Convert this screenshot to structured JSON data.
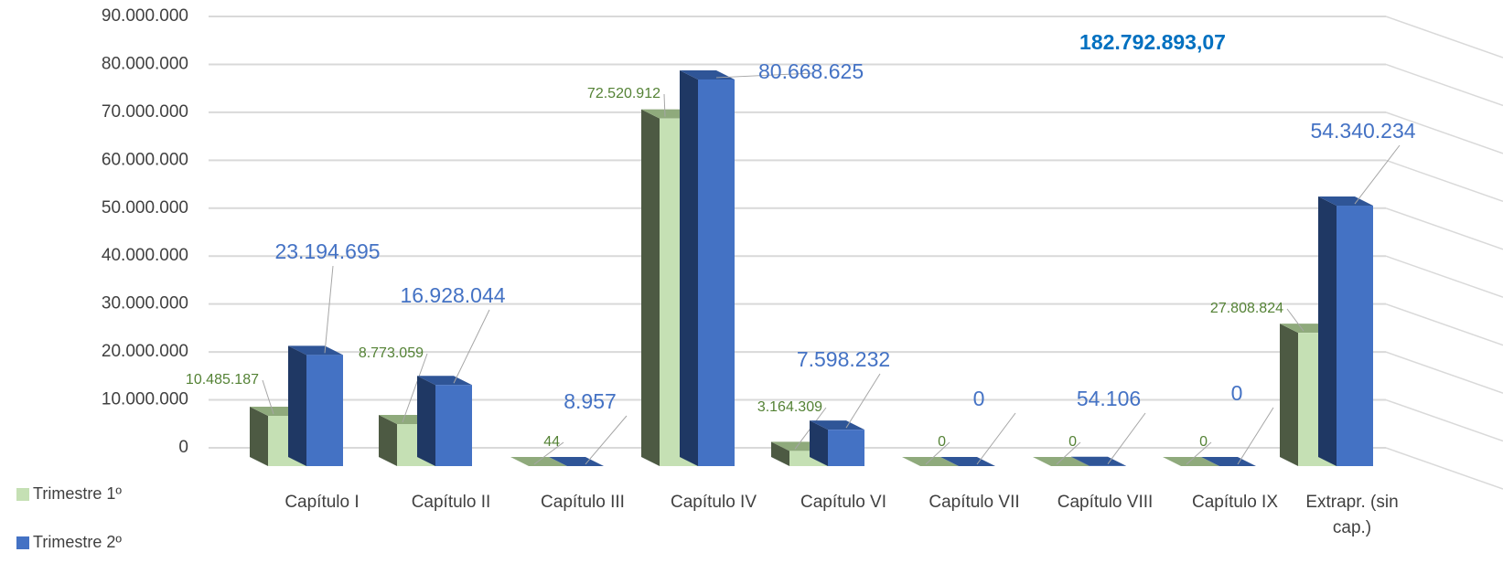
{
  "chart_data": {
    "type": "bar3d",
    "annotation": "182.792.893,07",
    "categories": [
      "Capítulo I",
      "Capítulo II",
      "Capítulo III",
      "Capítulo IV",
      "Capítulo VI",
      "Capítulo VII",
      "Capítulo VIII",
      "Capítulo IX",
      "Extrapr. (sin cap.)"
    ],
    "series": [
      {
        "name": "Trimestre 1º",
        "color": "#c5e0b4",
        "values": [
          10485187,
          8773059,
          44,
          72520912,
          3164309,
          0,
          0,
          0,
          27808824
        ],
        "value_labels": [
          "10.485.187",
          "8.773.059",
          "44",
          "72.520.912",
          "3.164.309",
          "0",
          "0",
          "0",
          "27.808.824"
        ]
      },
      {
        "name": "Trimestre 2º",
        "color": "#4472c4",
        "values": [
          23194695,
          16928044,
          8957,
          80668625,
          7598232,
          0,
          54106,
          0,
          54340234
        ],
        "value_labels": [
          "23.194.695",
          "16.928.044",
          "8.957",
          "80.668.625",
          "7.598.232",
          "0",
          "54.106",
          "0",
          "54.340.234"
        ]
      }
    ],
    "ylim": [
      0,
      90000000
    ],
    "yticks": [
      0,
      {
        "value": 10000000,
        "label": "10.000.000"
      },
      {
        "value": 20000000,
        "label": "20.000.000"
      },
      {
        "value": 30000000,
        "label": "30.000.000"
      },
      {
        "value": 40000000,
        "label": "40.000.000"
      },
      {
        "value": 50000000,
        "label": "50.000.000"
      },
      {
        "value": 60000000,
        "label": "60.000.000"
      },
      {
        "value": 70000000,
        "label": "70.000.000"
      },
      {
        "value": 80000000,
        "label": "80.000.000"
      },
      {
        "value": 90000000,
        "label": "90.000.000"
      }
    ],
    "grid": true
  }
}
